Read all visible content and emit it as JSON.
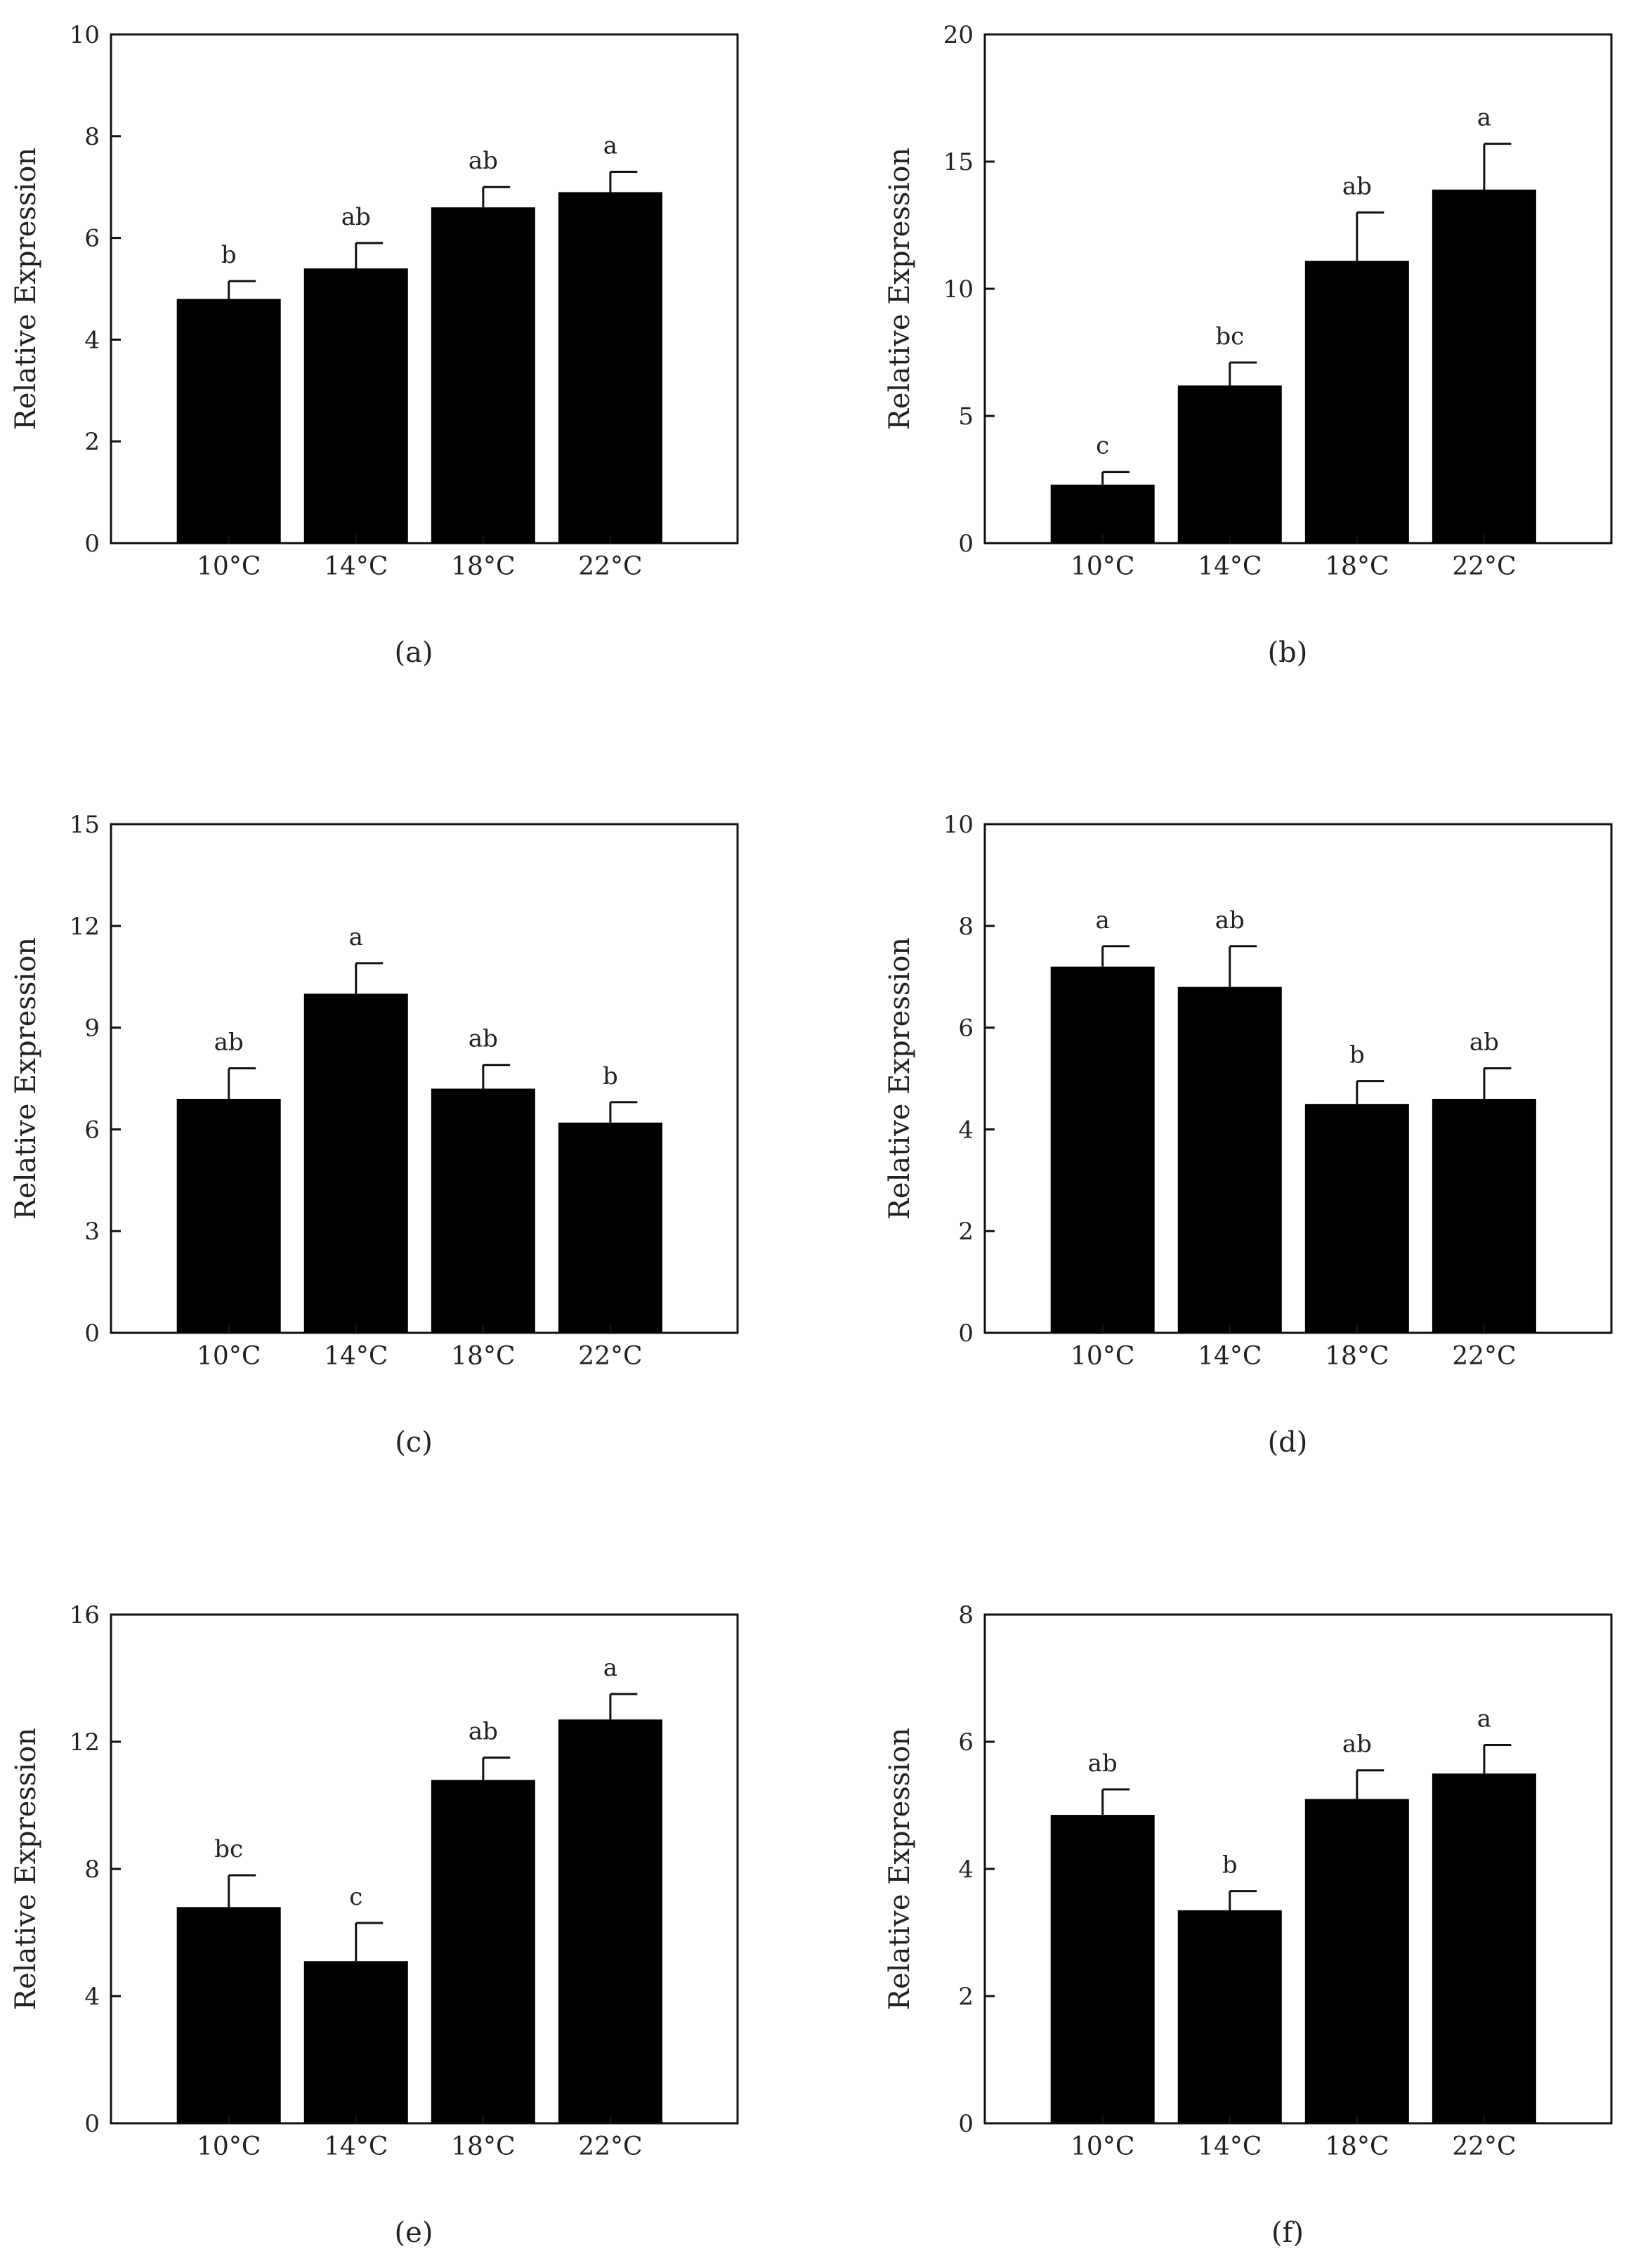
{
  "figure": {
    "panels": [
      {
        "label": "(a)"
      },
      {
        "label": "(b)"
      },
      {
        "label": "(c)"
      },
      {
        "label": "(d)"
      },
      {
        "label": "(e)"
      },
      {
        "label": "(f)"
      }
    ]
  },
  "chart_data": [
    {
      "type": "bar",
      "panel": "(a)",
      "categories": [
        "10°C",
        "14°C",
        "18°C",
        "22°C"
      ],
      "values": [
        4.8,
        5.4,
        6.6,
        6.9
      ],
      "errors": [
        0.35,
        0.5,
        0.4,
        0.4
      ],
      "significance": [
        "b",
        "ab",
        "ab",
        "a"
      ],
      "title": "",
      "xlabel": "",
      "ylabel": "Relative Expression",
      "ylim": [
        0,
        10
      ],
      "yticks": [
        0,
        2,
        4,
        6,
        8,
        10
      ],
      "color": "#000000"
    },
    {
      "type": "bar",
      "panel": "(b)",
      "categories": [
        "10°C",
        "14°C",
        "18°C",
        "22°C"
      ],
      "values": [
        2.3,
        6.2,
        11.1,
        13.9
      ],
      "errors": [
        0.5,
        0.9,
        1.9,
        1.8
      ],
      "significance": [
        "c",
        "bc",
        "ab",
        "a"
      ],
      "title": "",
      "xlabel": "",
      "ylabel": "Relative Expression",
      "ylim": [
        0,
        20
      ],
      "yticks": [
        0,
        5,
        10,
        15,
        20
      ],
      "color": "#000000"
    },
    {
      "type": "bar",
      "panel": "(c)",
      "categories": [
        "10°C",
        "14°C",
        "18°C",
        "22°C"
      ],
      "values": [
        6.9,
        10.0,
        7.2,
        6.2
      ],
      "errors": [
        0.9,
        0.9,
        0.7,
        0.6
      ],
      "significance": [
        "ab",
        "a",
        "ab",
        "b"
      ],
      "title": "",
      "xlabel": "",
      "ylabel": "Relative Expression",
      "ylim": [
        0,
        15
      ],
      "yticks": [
        0,
        3,
        6,
        9,
        12,
        15
      ],
      "color": "#000000"
    },
    {
      "type": "bar",
      "panel": "(d)",
      "categories": [
        "10°C",
        "14°C",
        "18°C",
        "22°C"
      ],
      "values": [
        7.2,
        6.8,
        4.5,
        4.6
      ],
      "errors": [
        0.4,
        0.8,
        0.45,
        0.6
      ],
      "significance": [
        "a",
        "ab",
        "b",
        "ab"
      ],
      "title": "",
      "xlabel": "",
      "ylabel": "Relative Expression",
      "ylim": [
        0,
        10
      ],
      "yticks": [
        0,
        2,
        4,
        6,
        8,
        10
      ],
      "color": "#000000"
    },
    {
      "type": "bar",
      "panel": "(e)",
      "categories": [
        "10°C",
        "14°C",
        "18°C",
        "22°C"
      ],
      "values": [
        6.8,
        5.1,
        10.8,
        12.7
      ],
      "errors": [
        1.0,
        1.2,
        0.7,
        0.8
      ],
      "significance": [
        "bc",
        "c",
        "ab",
        "a"
      ],
      "title": "",
      "xlabel": "",
      "ylabel": "Relative Expression",
      "ylim": [
        0,
        16
      ],
      "yticks": [
        0,
        4,
        8,
        12,
        16
      ],
      "color": "#000000"
    },
    {
      "type": "bar",
      "panel": "(f)",
      "categories": [
        "10°C",
        "14°C",
        "18°C",
        "22°C"
      ],
      "values": [
        4.85,
        3.35,
        5.1,
        5.5
      ],
      "errors": [
        0.4,
        0.3,
        0.45,
        0.45
      ],
      "significance": [
        "ab",
        "b",
        "ab",
        "a"
      ],
      "title": "",
      "xlabel": "",
      "ylabel": "Relative Expression",
      "ylim": [
        0,
        8
      ],
      "yticks": [
        0,
        2,
        4,
        6,
        8
      ],
      "color": "#000000"
    }
  ]
}
